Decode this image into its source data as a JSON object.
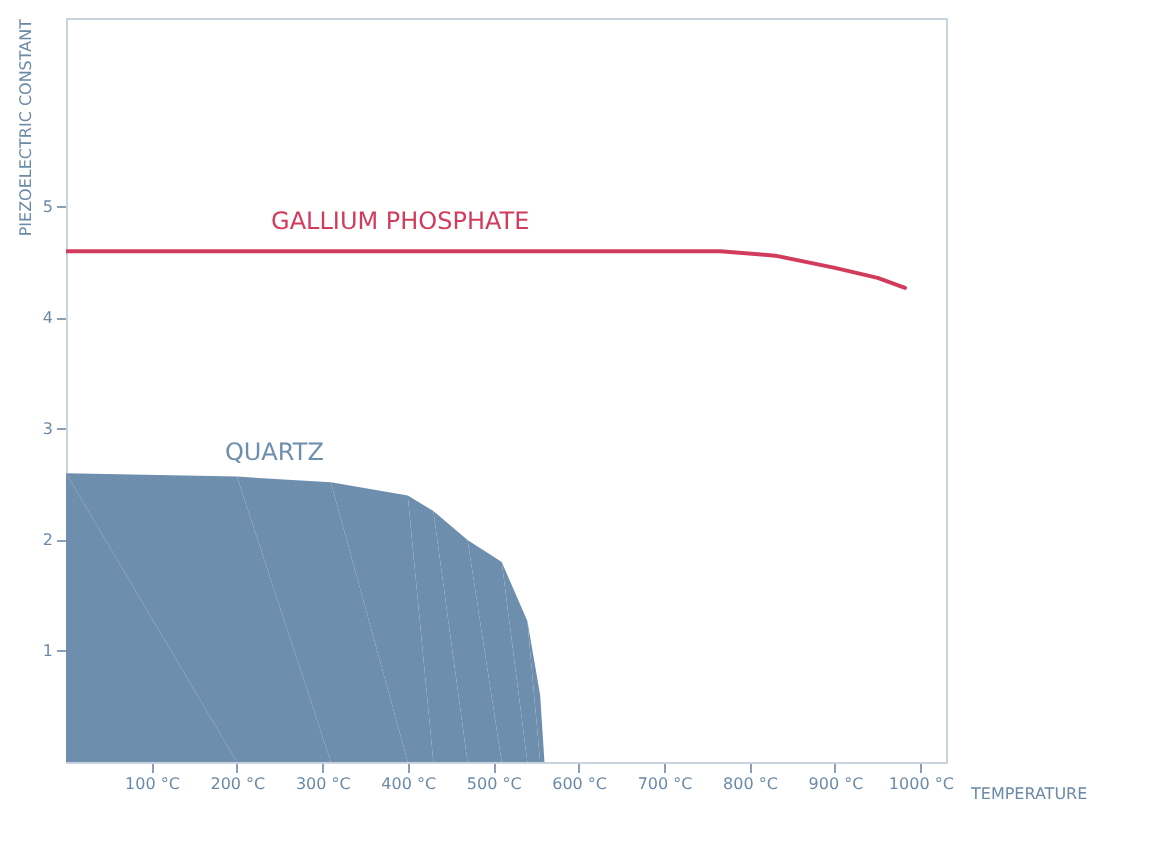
{
  "chart_data": {
    "type": "line",
    "xlabel": "TEMPERATURE",
    "ylabel": "PIEZOELECTRIC CONSTANT",
    "xlim": [
      0,
      1030
    ],
    "ylim": [
      0,
      6.7
    ],
    "xticks": [
      {
        "value": 100,
        "label": "100 °C"
      },
      {
        "value": 200,
        "label": "200 °C"
      },
      {
        "value": 300,
        "label": "300 °C"
      },
      {
        "value": 400,
        "label": "400 °C"
      },
      {
        "value": 500,
        "label": "500 °C"
      },
      {
        "value": 600,
        "label": "600 °C"
      },
      {
        "value": 700,
        "label": "700 °C"
      },
      {
        "value": 800,
        "label": "800 °C"
      },
      {
        "value": 900,
        "label": "900 °C"
      },
      {
        "value": 1000,
        "label": "1000 °C"
      }
    ],
    "yticks": [
      1,
      2,
      3,
      4,
      5
    ],
    "series": [
      {
        "name": "GALLIUM PHOSPHATE",
        "type": "line",
        "color": "#d23c5c",
        "x": [
          0,
          200,
          400,
          600,
          700,
          766,
          830,
          900,
          950,
          982
        ],
        "values": [
          4.6,
          4.6,
          4.6,
          4.6,
          4.6,
          4.6,
          4.56,
          4.45,
          4.36,
          4.27
        ]
      },
      {
        "name": "QUARTZ",
        "type": "area",
        "color": "#6d8ead",
        "x": [
          0,
          200,
          310,
          400,
          430,
          470,
          510,
          540,
          555,
          560
        ],
        "values": [
          2.6,
          2.57,
          2.52,
          2.4,
          2.26,
          2.0,
          1.8,
          1.27,
          0.6,
          0
        ]
      }
    ]
  }
}
